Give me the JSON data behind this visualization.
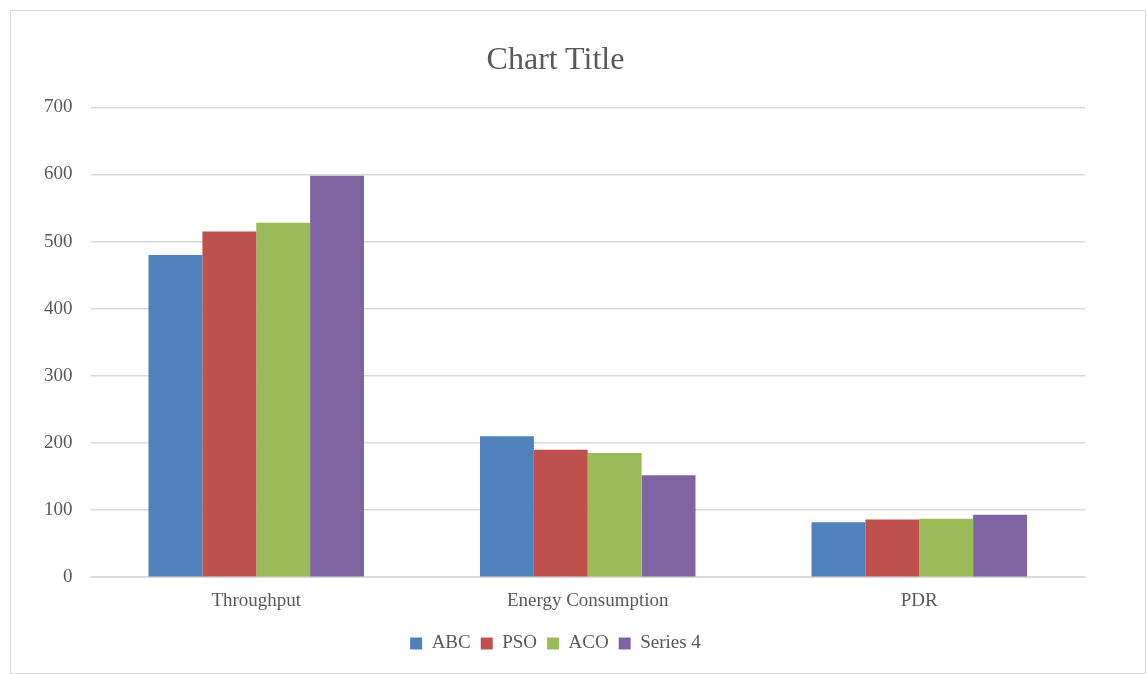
{
  "chart_data": {
    "type": "bar",
    "title": "Chart Title",
    "categories": [
      "Throughput",
      "Energy Consumption",
      "PDR"
    ],
    "series": [
      {
        "name": "ABC",
        "color": "#4f81bd",
        "values": [
          480,
          210,
          82
        ]
      },
      {
        "name": "PSO",
        "color": "#c0504d",
        "values": [
          515,
          190,
          86
        ]
      },
      {
        "name": "ACO",
        "color": "#9bbb59",
        "values": [
          528,
          185,
          87
        ]
      },
      {
        "name": "Series 4",
        "color": "#8064a2",
        "values": [
          598,
          152,
          93
        ]
      }
    ],
    "ylim": [
      0,
      700
    ],
    "yticks": [
      0,
      100,
      200,
      300,
      400,
      500,
      600,
      700
    ],
    "grid": "y",
    "legend": "bottom"
  }
}
